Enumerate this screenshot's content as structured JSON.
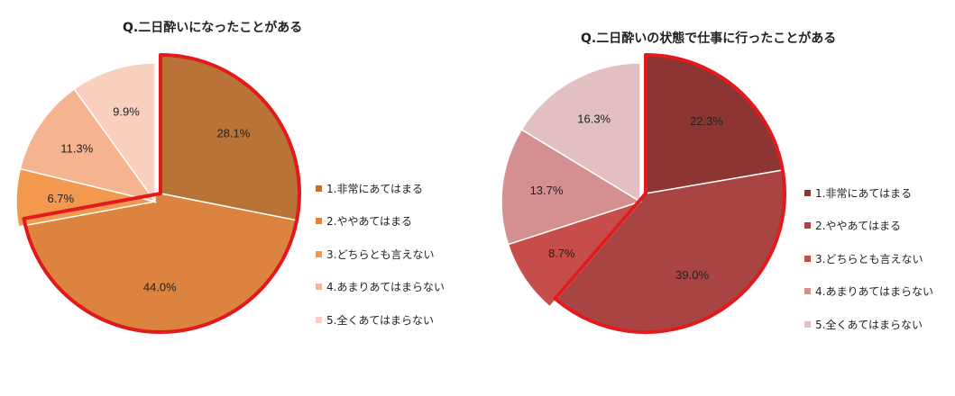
{
  "chart_data": [
    {
      "type": "pie",
      "title": "Q.二日酔いになったことがある",
      "categories": [
        "1.非常にあてはまる",
        "2.ややあてはまる",
        "3.どちらとも言えない",
        "4.あまりあてはまらない",
        "5.全くあてはまらない"
      ],
      "values": [
        28.1,
        44.0,
        6.7,
        11.3,
        9.9
      ],
      "value_labels": [
        "28.1%",
        "44.0%",
        "6.7%",
        "11.3%",
        "9.9%"
      ],
      "colors": [
        "#b97336",
        "#dc843f",
        "#f2984f",
        "#f6b38f",
        "#f9d0be"
      ],
      "highlight": "slices 1-2 outlined in red",
      "highlight_color": "#e31a1c",
      "legend_position": "right"
    },
    {
      "type": "pie",
      "title": "Q.二日酔いの状態で仕事に行ったことがある",
      "categories": [
        "1.非常にあてはまる",
        "2.ややあてはまる",
        "3.どちらとも言えない",
        "4.あまりあてはまらない",
        "5.全くあてはまらない"
      ],
      "values": [
        22.3,
        39.0,
        8.7,
        13.7,
        16.3
      ],
      "value_labels": [
        "22.3%",
        "39.0%",
        "8.7%",
        "13.7%",
        "16.3%"
      ],
      "colors": [
        "#8c3533",
        "#a84544",
        "#c64d4a",
        "#d49090",
        "#e2bfc0"
      ],
      "highlight": "slices 1-2 outlined in red",
      "highlight_color": "#e31a1c",
      "legend_position": "right"
    }
  ]
}
